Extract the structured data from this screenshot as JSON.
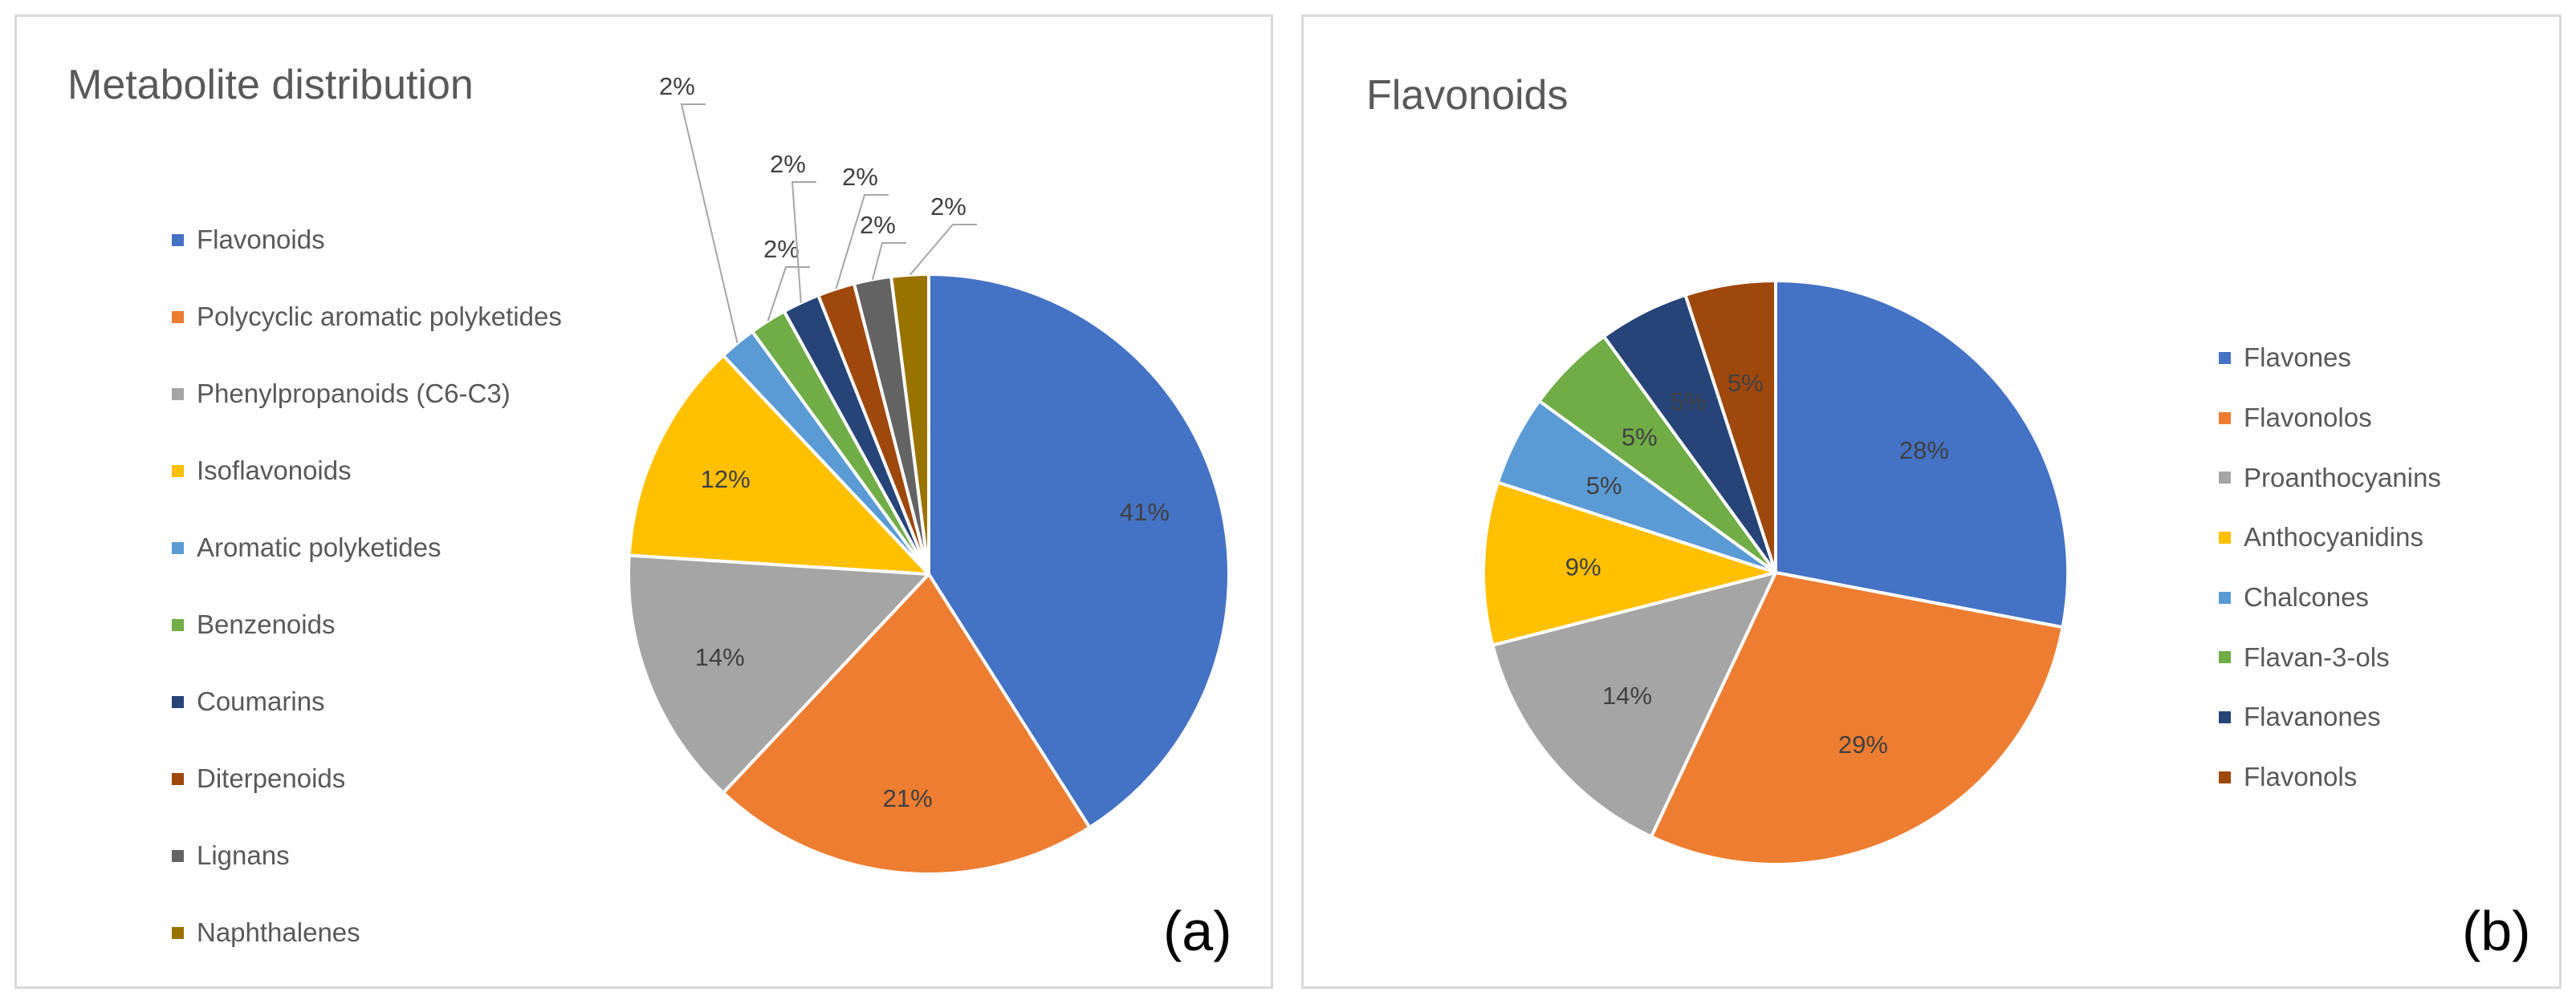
{
  "chart_data": [
    {
      "type": "pie",
      "title": "Metabolite distribution",
      "panel_label": "(a)",
      "legend_position": "left",
      "categories": [
        "Flavonoids",
        "Polycyclic aromatic polyketides",
        "Phenylpropanoids (C6-C3)",
        "Isoflavonoids",
        "Aromatic polyketides",
        "Benzenoids",
        "Coumarins",
        "Diterpenoids",
        "Lignans",
        "Naphthalenes"
      ],
      "values": [
        41,
        21,
        14,
        12,
        2,
        2,
        2,
        2,
        2,
        2
      ],
      "labels": [
        "41%",
        "21%",
        "14%",
        "12%",
        "2%",
        "2%",
        "2%",
        "2%",
        "2%",
        "2%"
      ],
      "colors": [
        "#4472c4",
        "#ed7d31",
        "#a5a5a5",
        "#ffc000",
        "#5b9bd5",
        "#70ad47",
        "#264478",
        "#9e480e",
        "#636363",
        "#997300"
      ]
    },
    {
      "type": "pie",
      "title": "Flavonoids",
      "panel_label": "(b)",
      "legend_position": "right",
      "categories": [
        "Flavones",
        "Flavonolos",
        "Proanthocyanins",
        "Anthocyanidins",
        "Chalcones",
        "Flavan-3-ols",
        "Flavanones",
        "Flavonols"
      ],
      "values": [
        28,
        29,
        14,
        9,
        5,
        5,
        5,
        5
      ],
      "labels": [
        "28%",
        "29%",
        "14%",
        "9%",
        "5%",
        "5%",
        "5%",
        "5%"
      ],
      "colors": [
        "#4472c4",
        "#ed7d31",
        "#a5a5a5",
        "#ffc000",
        "#5b9bd5",
        "#70ad47",
        "#264478",
        "#9e480e"
      ]
    }
  ]
}
